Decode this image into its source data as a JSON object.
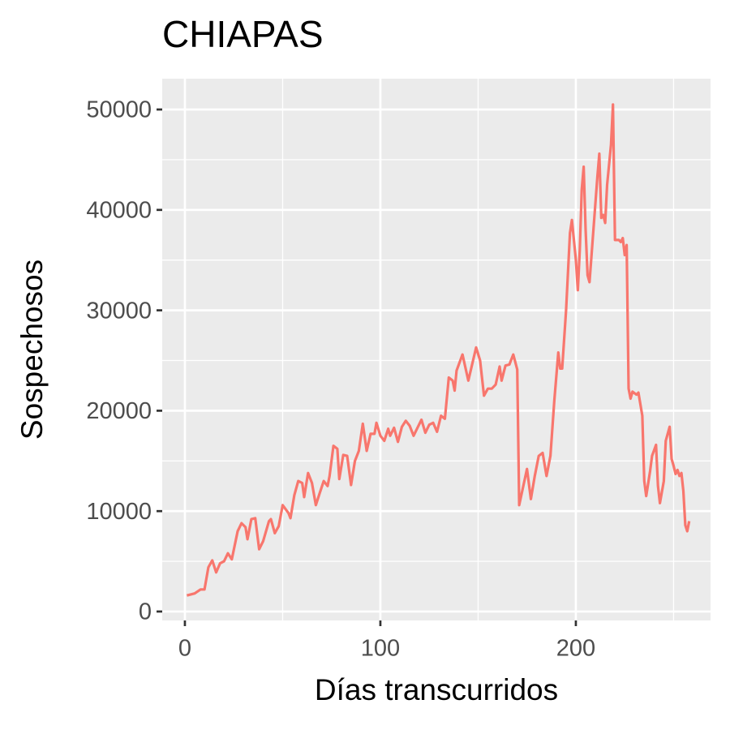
{
  "chart_data": {
    "type": "line",
    "title": "CHIAPAS",
    "x_label": "Días transcurridos",
    "y_label": "Sospechosos",
    "x": [
      1,
      5,
      8,
      10,
      12,
      14,
      16,
      18,
      20,
      22,
      24,
      27,
      29,
      31,
      32,
      34,
      36,
      38,
      40,
      43,
      44,
      46,
      48,
      50,
      53,
      54,
      56,
      58,
      60,
      61,
      63,
      65,
      67,
      69,
      71,
      73,
      74,
      76,
      78,
      79,
      81,
      83,
      85,
      87,
      89,
      91,
      93,
      95,
      97,
      98,
      100,
      102,
      104,
      105,
      107,
      109,
      111,
      113,
      115,
      117,
      119,
      121,
      123,
      125,
      127,
      129,
      131,
      133,
      135,
      137,
      138,
      139,
      142,
      145,
      149,
      151,
      153,
      155,
      157,
      159,
      161,
      162,
      164,
      166,
      168,
      170,
      171,
      175,
      177,
      179,
      181,
      183,
      185,
      187,
      189,
      191,
      192,
      193,
      195,
      197,
      198,
      200,
      201,
      202,
      203,
      204,
      205,
      206,
      207,
      209,
      211,
      212,
      213,
      214,
      215,
      216,
      218,
      219,
      220,
      222,
      223,
      224,
      225,
      226,
      227,
      228,
      229,
      231,
      232,
      234,
      235,
      236,
      238,
      239,
      241,
      242,
      243,
      245,
      246,
      248,
      249,
      250,
      251,
      252,
      253,
      254,
      255,
      256,
      257,
      258
    ],
    "series": [
      {
        "name": "CHIAPAS",
        "color": "#F8766D",
        "values": [
          1600,
          1800,
          2200,
          2200,
          4400,
          5100,
          3900,
          4800,
          5000,
          5800,
          5200,
          8000,
          8800,
          8400,
          7200,
          9200,
          9300,
          6200,
          7000,
          9000,
          9200,
          7800,
          8500,
          10600,
          9800,
          9300,
          11600,
          13000,
          12800,
          11400,
          13800,
          12800,
          10600,
          11800,
          13000,
          12500,
          13500,
          16500,
          16200,
          13200,
          15600,
          15500,
          12600,
          15000,
          16000,
          18700,
          16000,
          17700,
          17700,
          18800,
          17500,
          17000,
          18200,
          17500,
          18300,
          16900,
          18400,
          19000,
          18500,
          17500,
          18300,
          19100,
          17800,
          18600,
          18800,
          17900,
          19500,
          19200,
          23300,
          23000,
          22000,
          24000,
          25600,
          23000,
          26300,
          25000,
          21500,
          22200,
          22200,
          22600,
          24400,
          23000,
          24500,
          24600,
          25600,
          24100,
          10600,
          14200,
          11200,
          13500,
          15500,
          15800,
          13500,
          15500,
          21000,
          25800,
          24200,
          24200,
          30000,
          37700,
          39000,
          35000,
          32000,
          36000,
          42000,
          44300,
          38000,
          33500,
          32800,
          38000,
          43300,
          45600,
          39200,
          39500,
          38700,
          42500,
          46500,
          50500,
          37000,
          37000,
          36800,
          37200,
          35500,
          36500,
          22200,
          21200,
          21900,
          21600,
          21800,
          19500,
          13000,
          11500,
          14000,
          15500,
          16600,
          12500,
          10800,
          13000,
          17000,
          18400,
          15200,
          14500,
          13700,
          14100,
          13500,
          13800,
          12000,
          8600,
          8000,
          9000
        ]
      }
    ],
    "xlim": [
      -11.6,
      268.9
    ],
    "ylim": [
      -889,
      53070
    ],
    "xticks": [
      0,
      100,
      200
    ],
    "yticks": [
      0,
      10000,
      20000,
      30000,
      40000,
      50000
    ],
    "xminor": [
      50,
      150,
      250
    ],
    "yminor": [
      5000,
      15000,
      25000,
      35000,
      45000
    ],
    "grid": true
  }
}
